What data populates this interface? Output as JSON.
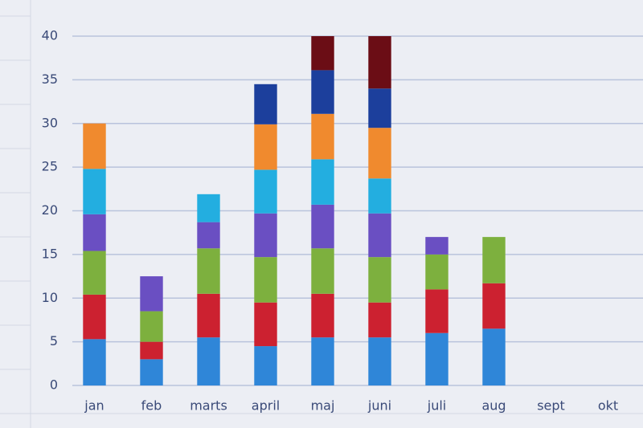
{
  "chart_data": {
    "type": "stacked_bar",
    "categories": [
      "jan",
      "feb",
      "marts",
      "april",
      "maj",
      "juni",
      "juli",
      "aug",
      "sept",
      "okt"
    ],
    "series": [
      {
        "color": "#2f86d8",
        "values": [
          5.3,
          3,
          5.5,
          4.5,
          5.5,
          5.5,
          6,
          6.5,
          null,
          null
        ]
      },
      {
        "color": "#cc2130",
        "values": [
          5.1,
          2,
          5,
          5,
          5,
          4,
          5,
          5.2,
          null,
          null
        ]
      },
      {
        "color": "#7db03e",
        "values": [
          5,
          3.5,
          5.2,
          5.2,
          5.2,
          5.2,
          4,
          5.3,
          null,
          null
        ]
      },
      {
        "color": "#6a4fc2",
        "values": [
          4.2,
          4,
          3,
          5,
          5,
          5,
          2,
          null,
          null,
          null
        ]
      },
      {
        "color": "#23aee0",
        "values": [
          5.2,
          null,
          3.2,
          5,
          5.2,
          4,
          null,
          null,
          null,
          null
        ]
      },
      {
        "color": "#f08a2e",
        "values": [
          5.2,
          null,
          null,
          5.2,
          5.2,
          5.8,
          null,
          null,
          null,
          null
        ]
      },
      {
        "color": "#1c3f9c",
        "values": [
          null,
          null,
          null,
          4.6,
          5,
          4.5,
          null,
          null,
          null,
          null
        ]
      },
      {
        "color": "#6b0d15",
        "values": [
          null,
          null,
          null,
          null,
          3.9,
          6,
          null,
          null,
          null,
          null
        ]
      }
    ],
    "ylim": [
      0,
      40
    ],
    "yticks": [
      0,
      5,
      10,
      15,
      20,
      25,
      30,
      35,
      40
    ],
    "grid": true
  }
}
